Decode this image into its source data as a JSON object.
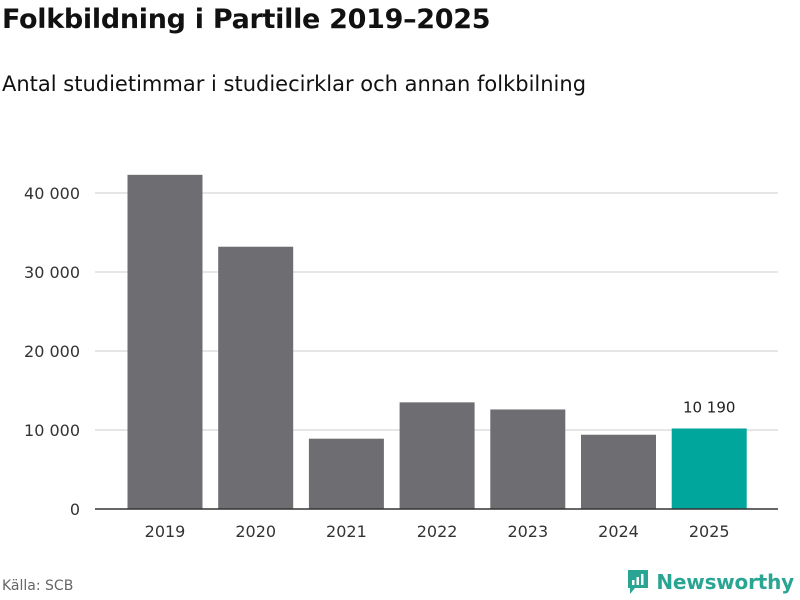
{
  "title": "Folkbildning i Partille 2019–2025",
  "subtitle": "Antal studietimmar i studiecirklar och annan folkbilning",
  "source": "Källa: SCB",
  "brand": {
    "name": "Newsworthy",
    "icon": "newsworthy-logo-icon"
  },
  "colors": {
    "bar": "#6e6d72",
    "highlight": "#00a59b",
    "grid": "#d8d8d8",
    "axis": "#333333",
    "text": "#333333"
  },
  "chart_data": {
    "type": "bar",
    "title": "Folkbildning i Partille 2019–2025",
    "xlabel": "",
    "ylabel": "",
    "categories": [
      "2019",
      "2020",
      "2021",
      "2022",
      "2023",
      "2024",
      "2025"
    ],
    "values": [
      42300,
      33200,
      8900,
      13500,
      12600,
      9400,
      10190
    ],
    "highlight_index": 6,
    "data_labels": [
      {
        "index": 6,
        "text": "10 190"
      }
    ],
    "yticks": [
      0,
      10000,
      20000,
      30000,
      40000
    ],
    "ytick_labels": [
      "0",
      "10 000",
      "20 000",
      "30 000",
      "40 000"
    ],
    "ylim": [
      0,
      45000
    ],
    "grid": true
  }
}
